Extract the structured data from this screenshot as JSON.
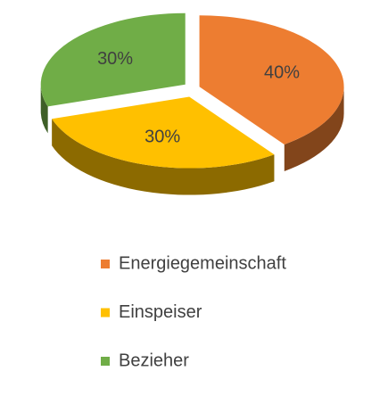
{
  "chart_data": {
    "type": "pie3d",
    "categories": [
      "Energiegemeinschaft",
      "Einspeiser",
      "Bezieher"
    ],
    "values": [
      40,
      30,
      30
    ],
    "value_labels": [
      "40%",
      "30%",
      "30%"
    ],
    "colors": [
      "#ED7D31",
      "#FFC000",
      "#70AD47"
    ],
    "legend": "bottom"
  }
}
